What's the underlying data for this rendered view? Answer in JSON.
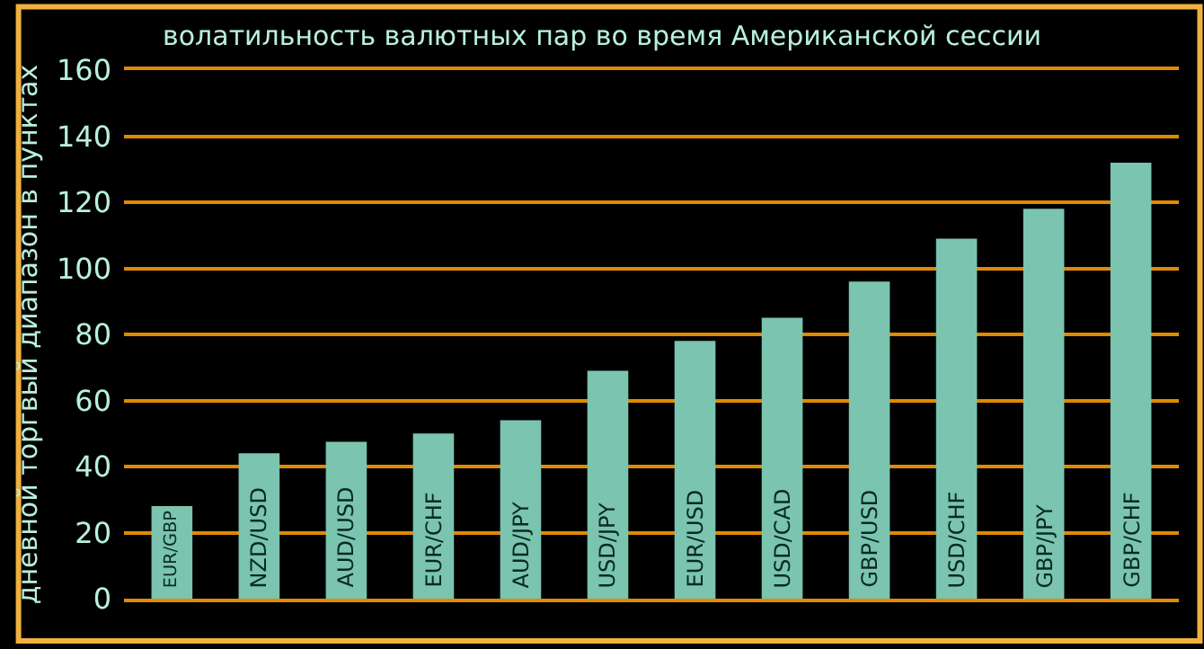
{
  "chart_data": {
    "type": "bar",
    "title": "волатильность валютных пар во время Американской сессии",
    "ylabel": "дневной торгвый диапазон в пунктах",
    "categories": [
      "EUR/GBP",
      "NZD/USD",
      "AUD/USD",
      "EUR/CHF",
      "AUD/JPY",
      "USD/JPY",
      "EUR/USD",
      "USD/CAD",
      "GBP/USD",
      "USD/CHF",
      "GBP/JPY",
      "GBP/CHF"
    ],
    "values": [
      28,
      44,
      47.5,
      50,
      54,
      69,
      78,
      85,
      96,
      109,
      118,
      132
    ],
    "color": "#7ac4b0",
    "ylim": [
      0,
      160
    ],
    "yticks": [
      0,
      20,
      40,
      60,
      80,
      100,
      120,
      140,
      160
    ],
    "grid": "y"
  }
}
